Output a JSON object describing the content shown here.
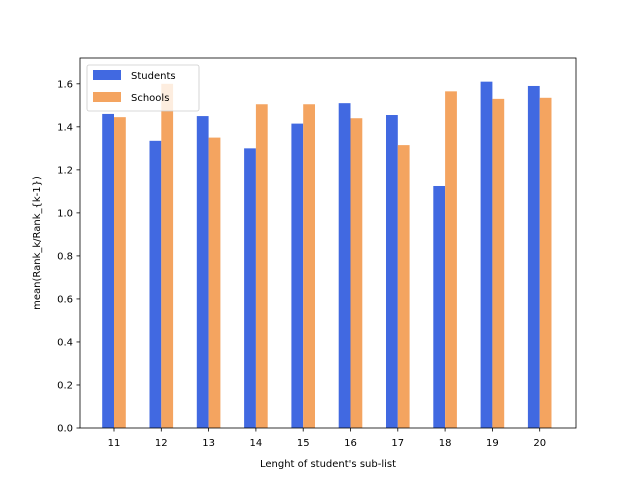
{
  "chart_data": {
    "type": "bar",
    "title": "",
    "xlabel": "Lenght of student's sub-list",
    "ylabel": "mean(Rank_k/Rank_{k-1})",
    "categories": [
      "11",
      "12",
      "13",
      "14",
      "15",
      "16",
      "17",
      "18",
      "19",
      "20"
    ],
    "series": [
      {
        "name": "Students",
        "color": "#4169e1",
        "values": [
          1.46,
          1.335,
          1.45,
          1.3,
          1.415,
          1.51,
          1.455,
          1.125,
          1.61,
          1.59
        ]
      },
      {
        "name": "Schools",
        "color": "#f4a460",
        "values": [
          1.445,
          1.6,
          1.35,
          1.505,
          1.505,
          1.44,
          1.315,
          1.565,
          1.53,
          1.535
        ]
      }
    ],
    "ylim": [
      0,
      1.72
    ],
    "yticks": [
      "0.0",
      "0.2",
      "0.4",
      "0.6",
      "0.8",
      "1.0",
      "1.2",
      "1.4",
      "1.6"
    ],
    "grid": false,
    "legend_position": "top-left"
  }
}
